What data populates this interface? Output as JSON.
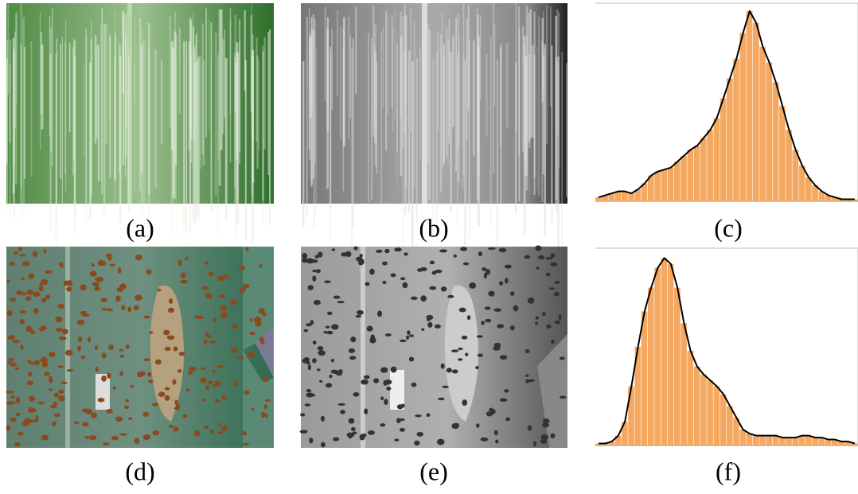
{
  "captions": [
    "(a)",
    "(b)",
    "(c)",
    "(d)",
    "(e)",
    "(f)"
  ],
  "chart_data": [
    {
      "type": "histogram",
      "bins": [
        0,
        1,
        2,
        3,
        4,
        5,
        6,
        7,
        8,
        9,
        10,
        11,
        12,
        13,
        14,
        15,
        16,
        17,
        18,
        19,
        20,
        21,
        22,
        23,
        24,
        25,
        26,
        27,
        28,
        29,
        30,
        31,
        32,
        33,
        34,
        35,
        36,
        37,
        38,
        39,
        40
      ],
      "values": [
        2,
        3,
        4,
        5,
        5,
        4,
        6,
        9,
        13,
        15,
        16,
        17,
        20,
        23,
        26,
        28,
        32,
        36,
        42,
        52,
        62,
        72,
        85,
        96,
        90,
        78,
        70,
        60,
        48,
        36,
        26,
        18,
        12,
        8,
        5,
        3,
        2,
        1,
        1,
        1
      ],
      "color": "#f5a860",
      "line_color": "#000000",
      "xlim": [
        0,
        40
      ],
      "ylim": [
        0,
        100
      ]
    },
    {
      "type": "histogram",
      "bins": [
        0,
        1,
        2,
        3,
        4,
        5,
        6,
        7,
        8,
        9,
        10,
        11,
        12,
        13,
        14,
        15,
        16,
        17,
        18,
        19,
        20,
        21,
        22,
        23,
        24,
        25,
        26,
        27,
        28,
        29,
        30,
        31,
        32,
        33,
        34,
        35,
        36,
        37,
        38,
        39,
        40
      ],
      "values": [
        1,
        1,
        2,
        5,
        12,
        30,
        50,
        68,
        80,
        90,
        95,
        92,
        80,
        62,
        48,
        40,
        36,
        33,
        30,
        26,
        20,
        14,
        8,
        6,
        5,
        5,
        5,
        5,
        4,
        4,
        4,
        5,
        5,
        4,
        4,
        3,
        3,
        2,
        2,
        1
      ],
      "color": "#f5a860",
      "line_color": "#000000",
      "xlim": [
        0,
        40
      ],
      "ylim": [
        0,
        100
      ]
    }
  ]
}
